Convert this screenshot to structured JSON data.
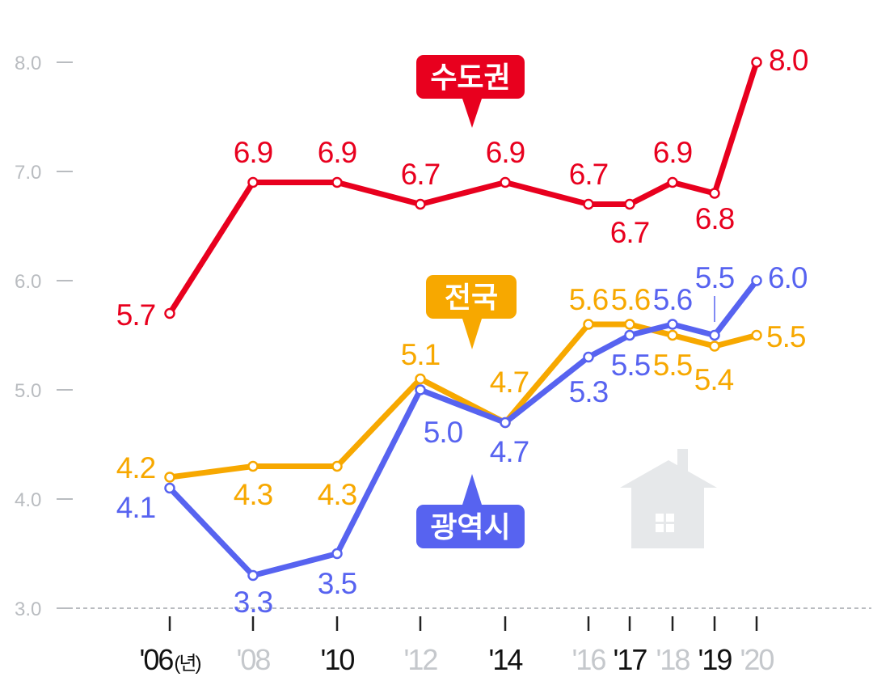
{
  "chart_data": {
    "type": "line",
    "categories": [
      "'06",
      "'08",
      "'10",
      "'12",
      "'14",
      "'16",
      "'17",
      "'18",
      "'19",
      "'20"
    ],
    "x": [
      2006,
      2008,
      2010,
      2012,
      2014,
      2016,
      2017,
      2018,
      2019,
      2020
    ],
    "x_unit_label": "(년)",
    "x_label_emphasis": [
      true,
      false,
      true,
      false,
      true,
      false,
      true,
      false,
      true,
      false
    ],
    "y_ticks": [
      3.0,
      4.0,
      5.0,
      6.0,
      7.0,
      8.0
    ],
    "y_tick_labels": [
      "3.0",
      "4.0",
      "5.0",
      "6.0",
      "7.0",
      "8.0"
    ],
    "ylim": [
      3.0,
      8.0
    ],
    "series": [
      {
        "name": "수도권",
        "color": "#e8001e",
        "values": [
          5.7,
          6.9,
          6.9,
          6.7,
          6.9,
          6.7,
          6.7,
          6.9,
          6.8,
          8.0
        ],
        "labels": [
          "5.7",
          "6.9",
          "6.9",
          "6.7",
          "6.9",
          "6.7",
          "6.7",
          "6.9",
          "6.8",
          "8.0"
        ]
      },
      {
        "name": "전국",
        "color": "#f7a800",
        "values": [
          4.2,
          4.3,
          4.3,
          5.1,
          4.7,
          5.6,
          5.6,
          5.5,
          5.4,
          5.5
        ],
        "labels": [
          "4.2",
          "4.3",
          "4.3",
          "5.1",
          "4.7",
          "5.6",
          "5.6",
          "5.5",
          "5.4",
          "5.5"
        ]
      },
      {
        "name": "광역시",
        "color": "#5763f0",
        "values": [
          4.1,
          3.3,
          3.5,
          5.0,
          4.7,
          5.3,
          5.5,
          5.6,
          5.5,
          6.0
        ],
        "labels": [
          "4.1",
          "3.3",
          "3.5",
          "5.0",
          "4.7",
          "5.3",
          "5.5",
          "5.6",
          "5.5",
          "6.0"
        ]
      }
    ]
  }
}
